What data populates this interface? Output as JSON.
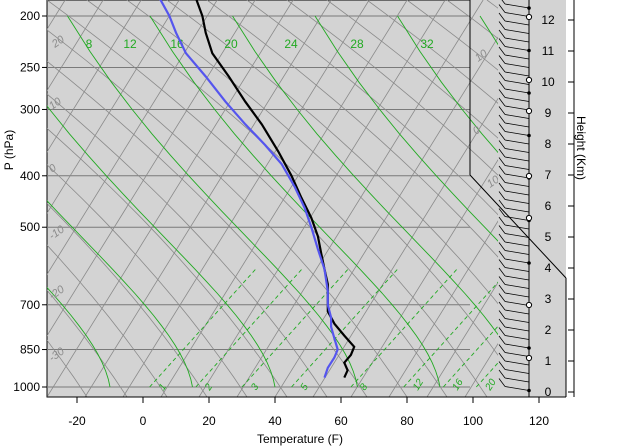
{
  "chart_data": {
    "type": "line",
    "title": "",
    "xlabel": "Temperature (F)",
    "ylabel": "P (hPa)",
    "y2label": "Height (Km)",
    "xlim": [
      -30,
      125
    ],
    "ylim_hpa": [
      1050,
      185
    ],
    "y_scale": "log-pressure",
    "x_ticks": [
      -20,
      0,
      20,
      40,
      60,
      80,
      100,
      120
    ],
    "y_ticks": [
      200,
      250,
      300,
      400,
      500,
      700,
      850,
      1000
    ],
    "height_ticks": [
      0,
      1,
      2,
      3,
      4,
      5,
      6,
      7,
      8,
      9,
      10,
      11,
      12
    ],
    "grid": true,
    "colors": {
      "background": "#d3d3d3",
      "temperature": "#000000",
      "dewpoint": "#5555ee",
      "mixing_ratio": "#22aa22",
      "isotherm_labels": "#8c8c8c",
      "isobar_grid": "#7a7a7a"
    },
    "mixing_ratio_lines": [
      1,
      2,
      3,
      5,
      8,
      12,
      16,
      20
    ],
    "mixing_ratio_labels": [
      "1",
      "2",
      "3",
      "5",
      "8",
      "12",
      "16",
      "20"
    ],
    "adiabat_labels": [
      "8",
      "12",
      "16",
      "20",
      "24",
      "28",
      "32"
    ],
    "isotherm_labels": [
      "20",
      "10",
      "0",
      "-10",
      "-20",
      "-30",
      "10",
      "0",
      "10",
      "20",
      "30",
      "40"
    ],
    "series": [
      {
        "name": "Temperature",
        "points": [
          {
            "p": 960,
            "t": 61
          },
          {
            "p": 930,
            "t": 62
          },
          {
            "p": 900,
            "t": 61
          },
          {
            "p": 870,
            "t": 63
          },
          {
            "p": 840,
            "t": 64
          },
          {
            "p": 800,
            "t": 61
          },
          {
            "p": 760,
            "t": 58
          },
          {
            "p": 720,
            "t": 56
          },
          {
            "p": 680,
            "t": 56
          },
          {
            "p": 640,
            "t": 56
          },
          {
            "p": 600,
            "t": 55
          },
          {
            "p": 560,
            "t": 54
          },
          {
            "p": 520,
            "t": 53
          },
          {
            "p": 480,
            "t": 51
          },
          {
            "p": 440,
            "t": 48
          },
          {
            "p": 400,
            "t": 45
          },
          {
            "p": 360,
            "t": 41
          },
          {
            "p": 320,
            "t": 36
          },
          {
            "p": 290,
            "t": 31
          },
          {
            "p": 260,
            "t": 26
          },
          {
            "p": 235,
            "t": 21
          },
          {
            "p": 215,
            "t": 19
          },
          {
            "p": 200,
            "t": 18
          },
          {
            "p": 185,
            "t": 16
          }
        ]
      },
      {
        "name": "Dewpoint",
        "points": [
          {
            "p": 960,
            "t": 55
          },
          {
            "p": 920,
            "t": 56
          },
          {
            "p": 880,
            "t": 58
          },
          {
            "p": 850,
            "t": 59
          },
          {
            "p": 810,
            "t": 58
          },
          {
            "p": 770,
            "t": 57
          },
          {
            "p": 740,
            "t": 57
          },
          {
            "p": 700,
            "t": 56
          },
          {
            "p": 660,
            "t": 56
          },
          {
            "p": 600,
            "t": 55
          },
          {
            "p": 550,
            "t": 53
          },
          {
            "p": 500,
            "t": 51
          },
          {
            "p": 460,
            "t": 49
          },
          {
            "p": 420,
            "t": 46
          },
          {
            "p": 380,
            "t": 42
          },
          {
            "p": 350,
            "t": 37
          },
          {
            "p": 320,
            "t": 31
          },
          {
            "p": 290,
            "t": 25
          },
          {
            "p": 260,
            "t": 19
          },
          {
            "p": 235,
            "t": 13
          },
          {
            "p": 215,
            "t": 10
          },
          {
            "p": 200,
            "t": 8
          },
          {
            "p": 185,
            "t": 5
          }
        ]
      }
    ]
  }
}
